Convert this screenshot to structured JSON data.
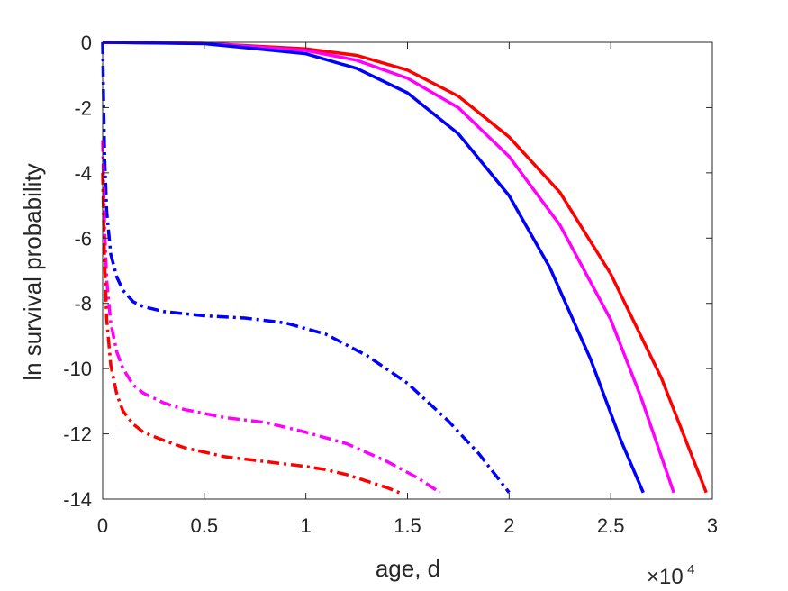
{
  "chart_data": {
    "type": "line",
    "xlabel": "age, d",
    "ylabel": "ln survival probability",
    "x_exponent_label": {
      "base": "×10",
      "power": "4"
    },
    "xlim": [
      0,
      3
    ],
    "ylim": [
      -14,
      0
    ],
    "x_ticks": [
      0,
      0.5,
      1,
      1.5,
      2,
      2.5,
      3
    ],
    "x_tick_labels": [
      "0",
      "0.5",
      "1",
      "1.5",
      "2",
      "2.5",
      "3"
    ],
    "y_ticks": [
      0,
      -2,
      -4,
      -6,
      -8,
      -10,
      -12,
      -14
    ],
    "y_tick_labels": [
      "0",
      "-2",
      "-4",
      "-6",
      "-8",
      "-10",
      "-12",
      "-14"
    ],
    "grid": false,
    "box": true,
    "series": [
      {
        "color": "#ff0000",
        "style": "solid",
        "x": [
          0.0,
          0.5,
          1.0,
          1.25,
          1.5,
          1.75,
          2.0,
          2.25,
          2.5,
          2.75,
          2.97
        ],
        "y": [
          0.0,
          -0.03,
          -0.2,
          -0.4,
          -0.85,
          -1.65,
          -2.9,
          -4.6,
          -7.1,
          -10.3,
          -13.8
        ]
      },
      {
        "color": "#ff00ff",
        "style": "solid",
        "x": [
          0.0,
          0.5,
          1.0,
          1.25,
          1.5,
          1.75,
          2.0,
          2.25,
          2.5,
          2.65,
          2.81
        ],
        "y": [
          0.0,
          -0.03,
          -0.25,
          -0.55,
          -1.1,
          -2.0,
          -3.5,
          -5.6,
          -8.5,
          -10.9,
          -13.8
        ]
      },
      {
        "color": "#0000ff",
        "style": "solid",
        "x": [
          0.0,
          0.5,
          1.0,
          1.25,
          1.5,
          1.75,
          2.0,
          2.2,
          2.4,
          2.55,
          2.66
        ],
        "y": [
          0.0,
          -0.04,
          -0.35,
          -0.8,
          -1.55,
          -2.8,
          -4.7,
          -6.9,
          -9.7,
          -12.2,
          -13.8
        ]
      },
      {
        "color": "#0000ff",
        "style": "dashdot",
        "x": [
          0.0,
          0.005,
          0.01,
          0.02,
          0.04,
          0.07,
          0.1,
          0.15,
          0.2,
          0.3,
          0.5,
          0.7,
          0.9,
          1.1,
          1.3,
          1.5,
          1.7,
          1.85,
          2.0
        ],
        "y": [
          0.0,
          -2.0,
          -3.6,
          -5.2,
          -6.5,
          -7.2,
          -7.6,
          -7.95,
          -8.1,
          -8.25,
          -8.38,
          -8.45,
          -8.6,
          -8.95,
          -9.6,
          -10.45,
          -11.6,
          -12.6,
          -13.8
        ]
      },
      {
        "color": "#ff00ff",
        "style": "dashdot",
        "x": [
          0.0,
          0.005,
          0.01,
          0.02,
          0.04,
          0.07,
          0.1,
          0.15,
          0.2,
          0.3,
          0.4,
          0.6,
          0.8,
          1.0,
          1.2,
          1.4,
          1.55,
          1.66
        ],
        "y": [
          -3.0,
          -4.5,
          -5.8,
          -7.3,
          -8.6,
          -9.5,
          -10.0,
          -10.5,
          -10.75,
          -11.05,
          -11.25,
          -11.5,
          -11.65,
          -11.95,
          -12.3,
          -12.85,
          -13.35,
          -13.8
        ]
      },
      {
        "color": "#ff0000",
        "style": "dashdot",
        "x": [
          0.0,
          0.005,
          0.01,
          0.02,
          0.04,
          0.07,
          0.1,
          0.15,
          0.2,
          0.3,
          0.4,
          0.6,
          0.8,
          1.0,
          1.1,
          1.2,
          1.3,
          1.4,
          1.46
        ],
        "y": [
          -4.0,
          -5.5,
          -6.8,
          -8.5,
          -9.9,
          -10.8,
          -11.3,
          -11.7,
          -11.95,
          -12.2,
          -12.42,
          -12.7,
          -12.85,
          -13.0,
          -13.1,
          -13.25,
          -13.45,
          -13.65,
          -13.8
        ]
      }
    ]
  }
}
